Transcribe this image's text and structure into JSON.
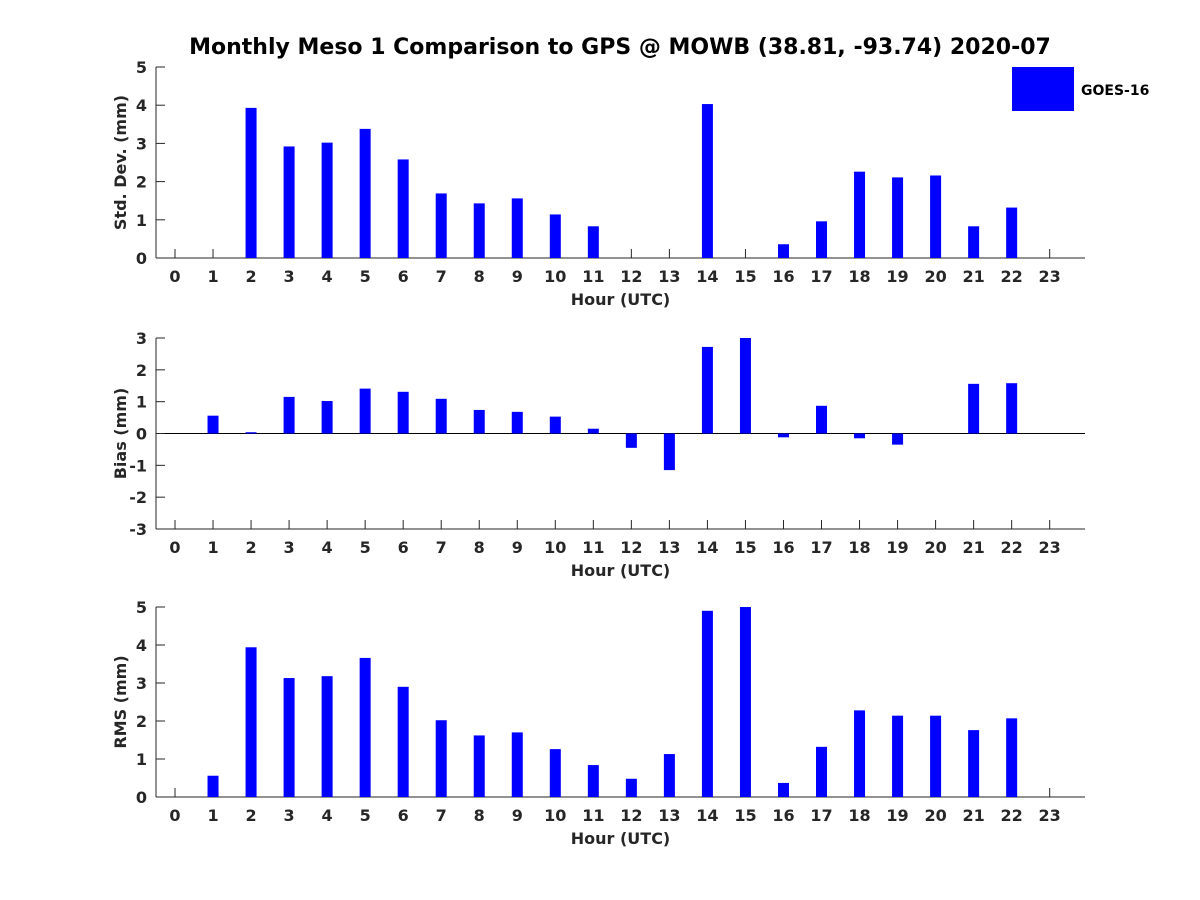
{
  "chart_data": {
    "title": "Monthly Meso 1 Comparison to GPS @ MOWB (38.81, -93.74) 2020-07",
    "legend": {
      "label": "GOES-16",
      "color": "#0000ff",
      "placement": "top-right"
    },
    "panels": [
      {
        "type": "bar",
        "ylabel": "Std. Dev. (mm)",
        "xlabel": "Hour (UTC)",
        "ylim": [
          0,
          5
        ],
        "yticks": [
          "0",
          "1",
          "2",
          "3",
          "4",
          "5"
        ],
        "categories": [
          "0",
          "1",
          "2",
          "3",
          "4",
          "5",
          "6",
          "7",
          "8",
          "9",
          "10",
          "11",
          "12",
          "13",
          "14",
          "15",
          "16",
          "17",
          "18",
          "19",
          "20",
          "21",
          "22",
          "23"
        ],
        "values": [
          null,
          null,
          3.93,
          2.92,
          3.02,
          3.38,
          2.58,
          1.69,
          1.43,
          1.56,
          1.14,
          0.83,
          null,
          null,
          4.03,
          null,
          0.36,
          0.96,
          2.26,
          2.11,
          2.16,
          0.83,
          1.32,
          null
        ]
      },
      {
        "type": "bar",
        "ylabel": "Bias (mm)",
        "xlabel": "Hour (UTC)",
        "ylim": [
          -3,
          3
        ],
        "yticks": [
          "-3",
          "-2",
          "-1",
          "0",
          "1",
          "2",
          "3"
        ],
        "categories": [
          "0",
          "1",
          "2",
          "3",
          "4",
          "5",
          "6",
          "7",
          "8",
          "9",
          "10",
          "11",
          "12",
          "13",
          "14",
          "15",
          "16",
          "17",
          "18",
          "19",
          "20",
          "21",
          "22",
          "23"
        ],
        "values": [
          null,
          0.56,
          0.04,
          1.15,
          1.02,
          1.41,
          1.31,
          1.09,
          0.74,
          0.68,
          0.53,
          0.15,
          -0.45,
          -1.15,
          2.72,
          3.0,
          -0.12,
          0.87,
          -0.15,
          -0.35,
          null,
          1.56,
          1.58,
          null
        ]
      },
      {
        "type": "bar",
        "ylabel": "RMS (mm)",
        "xlabel": "Hour (UTC)",
        "ylim": [
          0,
          5
        ],
        "yticks": [
          "0",
          "1",
          "2",
          "3",
          "4",
          "5"
        ],
        "categories": [
          "0",
          "1",
          "2",
          "3",
          "4",
          "5",
          "6",
          "7",
          "8",
          "9",
          "10",
          "11",
          "12",
          "13",
          "14",
          "15",
          "16",
          "17",
          "18",
          "19",
          "20",
          "21",
          "22",
          "23"
        ],
        "values": [
          null,
          0.56,
          3.94,
          3.13,
          3.18,
          3.66,
          2.9,
          2.02,
          1.62,
          1.7,
          1.26,
          0.84,
          0.48,
          1.13,
          4.9,
          5.0,
          0.37,
          1.32,
          2.28,
          2.14,
          2.14,
          1.76,
          2.07,
          null
        ]
      }
    ]
  }
}
